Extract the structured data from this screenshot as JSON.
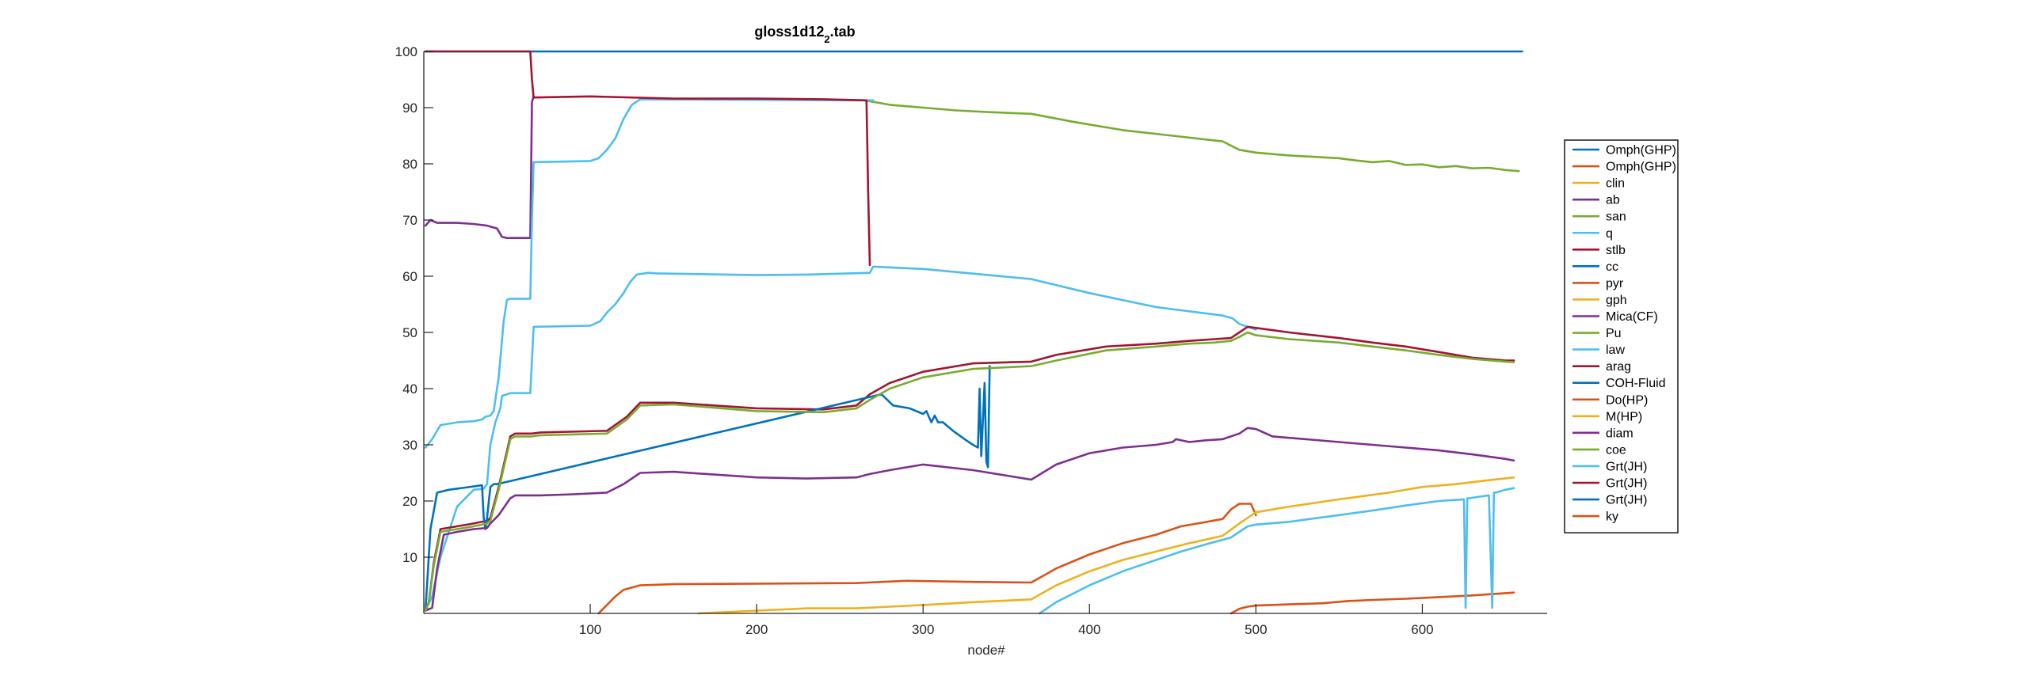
{
  "chart_data": {
    "type": "line",
    "title": "gloss1d12",
    "title_subscript": "2",
    "title_suffix": ".tab",
    "xlabel": "node#",
    "ylabel": "",
    "xlim": [
      0,
      675
    ],
    "ylim": [
      0,
      100
    ],
    "xticks": [
      100,
      200,
      300,
      400,
      500,
      600
    ],
    "yticks": [
      10,
      20,
      30,
      40,
      50,
      60,
      70,
      80,
      90,
      100
    ],
    "grid": false,
    "legend_position": "outside-right",
    "series": [
      {
        "name": "Omph(GHP)",
        "color": "#0072bd",
        "x": [
          1,
          660
        ],
        "y": [
          100,
          100
        ]
      },
      {
        "name": "Omph(GHP)",
        "color": "#d95319",
        "x": [
          1
        ],
        "y": [
          0
        ]
      },
      {
        "name": "clin",
        "color": "#edb120",
        "x": [
          1
        ],
        "y": [
          0
        ]
      },
      {
        "name": "ab",
        "color": "#7e2f8e",
        "x": [
          1,
          4,
          8,
          20,
          30,
          38,
          44,
          47,
          50,
          60,
          64,
          65,
          66
        ],
        "y": [
          69,
          70,
          69.5,
          69.5,
          69.3,
          69,
          68.5,
          67,
          66.8,
          66.8,
          66.8,
          91,
          92
        ]
      },
      {
        "name": "san",
        "color": "#77ac30",
        "x": [
          265,
          280,
          300,
          320,
          340,
          365,
          390,
          420,
          450,
          480,
          490,
          500,
          520,
          550,
          560,
          570,
          580,
          590,
          600,
          610,
          620,
          630,
          640,
          650,
          658
        ],
        "y": [
          91.3,
          90.5,
          90,
          89.5,
          89.2,
          88.9,
          87.5,
          86,
          85,
          84,
          82.5,
          82,
          81.5,
          81,
          80.6,
          80.3,
          80.5,
          79.8,
          79.9,
          79.4,
          79.6,
          79.2,
          79.3,
          78.9,
          78.7
        ]
      },
      {
        "name": "q",
        "color": "#4dbeee",
        "x": [
          1,
          5,
          10,
          20,
          30,
          35,
          37,
          40,
          42,
          45,
          48,
          50,
          52,
          54,
          60,
          64,
          65,
          66,
          100,
          105,
          110,
          115,
          120,
          125,
          130,
          270
        ],
        "y": [
          29.5,
          31,
          33.5,
          34,
          34.2,
          34.5,
          35,
          35.2,
          36,
          42,
          52,
          55.8,
          56,
          56,
          56,
          56,
          70,
          80.3,
          80.5,
          81,
          82.5,
          84.5,
          88,
          90.5,
          91.5,
          91.3
        ]
      },
      {
        "name": "stlb",
        "color": "#a2142f",
        "x": [
          1,
          64,
          65,
          66,
          100,
          150,
          200,
          240,
          266,
          267,
          268
        ],
        "y": [
          100,
          100,
          95,
          91.8,
          92,
          91.6,
          91.6,
          91.5,
          91.3,
          75,
          62
        ]
      },
      {
        "name": "cc",
        "color": "#0072bd",
        "x": [
          1
        ],
        "y": [
          0
        ]
      },
      {
        "name": "pyr",
        "color": "#d95319",
        "x": [
          485,
          490,
          495,
          500,
          520,
          540,
          555,
          570,
          590,
          610,
          630,
          650,
          655
        ],
        "y": [
          0,
          0.8,
          1.2,
          1.4,
          1.6,
          1.8,
          2.2,
          2.4,
          2.6,
          2.9,
          3.2,
          3.6,
          3.7
        ]
      },
      {
        "name": "gph",
        "color": "#edb120",
        "x": [
          1
        ],
        "y": [
          0
        ]
      },
      {
        "name": "Mica(CF)",
        "color": "#7e2f8e",
        "x": [
          1
        ],
        "y": [
          0
        ]
      },
      {
        "name": "Pu",
        "color": "#77ac30",
        "x": [
          1
        ],
        "y": [
          0
        ]
      },
      {
        "name": "law",
        "color": "#4dbeee",
        "x": [
          1,
          5,
          10,
          20,
          30,
          36,
          38,
          40,
          43,
          46,
          47,
          50,
          52,
          62,
          64,
          65,
          66,
          100,
          106,
          110,
          115,
          120,
          124,
          128,
          135,
          140,
          200,
          230,
          268,
          270,
          300,
          365,
          400,
          440,
          480,
          486,
          490,
          500
        ],
        "y": [
          0.5,
          3,
          10,
          19,
          22,
          22.2,
          23,
          30,
          34,
          36.5,
          38.7,
          39,
          39.2,
          39.2,
          39.2,
          45,
          51,
          51.2,
          52,
          53.5,
          55,
          57,
          59,
          60.3,
          60.6,
          60.5,
          60.2,
          60.3,
          60.6,
          61.7,
          61.3,
          59.5,
          57,
          54.5,
          53,
          52.5,
          51.5,
          50.5
        ]
      },
      {
        "name": "arag",
        "color": "#a2142f",
        "x": [
          1,
          3,
          6,
          10,
          20,
          30,
          38,
          40,
          45,
          52,
          55,
          65,
          70,
          110,
          122,
          130,
          150,
          200,
          240,
          260,
          268,
          280,
          300,
          330,
          365,
          380,
          410,
          440,
          460,
          475,
          485,
          490,
          495,
          500,
          520,
          550,
          570,
          590,
          610,
          630,
          650,
          655
        ],
        "y": [
          0.5,
          2,
          9,
          15,
          15.5,
          16,
          16.5,
          17,
          22.5,
          31.5,
          32,
          32,
          32.2,
          32.5,
          35,
          37.5,
          37.5,
          36.5,
          36.3,
          37,
          39,
          41,
          43,
          44.5,
          44.8,
          46,
          47.5,
          48,
          48.5,
          48.8,
          49,
          50,
          51,
          50.8,
          50,
          49,
          48.2,
          47.5,
          46.5,
          45.5,
          45,
          45
        ]
      },
      {
        "name": "COH-Fluid",
        "color": "#0072bd",
        "x": [
          1,
          4,
          8,
          15,
          25,
          35,
          36,
          37,
          38,
          40,
          42,
          44,
          275,
          282,
          292,
          300,
          302,
          305,
          307,
          309,
          312,
          318,
          325,
          330,
          333,
          334,
          335,
          337,
          338,
          339,
          340
        ],
        "y": [
          0.5,
          15,
          21.5,
          22,
          22.4,
          22.8,
          17,
          15,
          17,
          22.5,
          23,
          23,
          39,
          37,
          36.5,
          35.5,
          36,
          34,
          35.2,
          34,
          34,
          32.5,
          31,
          30,
          29.5,
          40,
          28,
          41,
          27,
          26,
          44
        ]
      },
      {
        "name": "Do(HP)",
        "color": "#d95319",
        "x": [
          105,
          110,
          115,
          120,
          130,
          150,
          200,
          260,
          290,
          330,
          365,
          380,
          400,
          420,
          440,
          455,
          465,
          480,
          485,
          490,
          497,
          500
        ],
        "y": [
          0,
          1.5,
          3,
          4.2,
          5,
          5.2,
          5.3,
          5.4,
          5.8,
          5.6,
          5.5,
          8,
          10.5,
          12.5,
          14,
          15.5,
          16,
          16.8,
          18.5,
          19.5,
          19.5,
          17.5
        ]
      },
      {
        "name": "M(HP)",
        "color": "#edb120",
        "x": [
          165,
          200,
          230,
          260,
          280,
          300,
          330,
          365,
          380,
          400,
          420,
          440,
          460,
          480,
          490,
          500,
          520,
          550,
          580,
          600,
          620,
          640,
          655
        ],
        "y": [
          0,
          0.5,
          0.9,
          0.9,
          1.2,
          1.5,
          2,
          2.5,
          5,
          7.5,
          9.5,
          11,
          12.5,
          13.8,
          16,
          18,
          19,
          20.3,
          21.5,
          22.5,
          23,
          23.7,
          24.2
        ]
      },
      {
        "name": "diam",
        "color": "#7e2f8e",
        "x": [
          1,
          5,
          8,
          12,
          20,
          30,
          38,
          40,
          45,
          52,
          55,
          60,
          70,
          90,
          110,
          120,
          130,
          150,
          200,
          230,
          260,
          268,
          280,
          300,
          330,
          365,
          380,
          400,
          420,
          440,
          450,
          452,
          460,
          470,
          480,
          490,
          495,
          500,
          510,
          530,
          550,
          570,
          590,
          610,
          630,
          650,
          655
        ],
        "y": [
          0.5,
          1,
          8,
          14,
          14.5,
          15,
          15.2,
          16,
          17.5,
          20.5,
          21,
          21,
          21,
          21.2,
          21.5,
          23,
          25,
          25.2,
          24.2,
          24,
          24.2,
          24.8,
          25.5,
          26.5,
          25.5,
          23.8,
          26.5,
          28.5,
          29.5,
          30,
          30.5,
          31,
          30.5,
          30.8,
          31,
          32,
          33,
          32.8,
          31.5,
          31,
          30.5,
          30,
          29.5,
          29,
          28.3,
          27.5,
          27.2
        ]
      },
      {
        "name": "coe",
        "color": "#77ac30",
        "x": [
          1,
          3,
          6,
          10,
          20,
          30,
          38,
          40,
          45,
          52,
          55,
          65,
          70,
          110,
          122,
          130,
          150,
          200,
          240,
          260,
          268,
          280,
          300,
          330,
          365,
          380,
          410,
          440,
          460,
          475,
          485,
          490,
          495,
          500,
          520,
          550,
          570,
          590,
          610,
          630,
          650,
          655
        ],
        "y": [
          0.5,
          2,
          8.5,
          14.5,
          15,
          15.5,
          16,
          16.5,
          22,
          31,
          31.5,
          31.5,
          31.7,
          32,
          34.5,
          37,
          37.2,
          36,
          35.8,
          36.5,
          38,
          40,
          42,
          43.5,
          44,
          45,
          46.8,
          47.5,
          48,
          48.2,
          48.5,
          49.2,
          50,
          49.5,
          48.8,
          48.2,
          47.5,
          46.8,
          46,
          45.3,
          44.8,
          44.7
        ]
      },
      {
        "name": "Grt(JH)",
        "color": "#4dbeee",
        "x": [
          370,
          380,
          400,
          420,
          440,
          455,
          470,
          485,
          490,
          495,
          500,
          520,
          550,
          570,
          590,
          610,
          625,
          626,
          627,
          628,
          640,
          642,
          643,
          644,
          650,
          655
        ],
        "y": [
          0,
          2,
          5,
          7.5,
          9.5,
          11,
          12.3,
          13.5,
          14.5,
          15.5,
          15.8,
          16.3,
          17.5,
          18.3,
          19.2,
          20,
          20.3,
          1,
          20.5,
          20.5,
          21,
          1,
          21.5,
          21.5,
          22,
          22.3
        ]
      },
      {
        "name": "Grt(JH)",
        "color": "#a2142f",
        "x": [
          1
        ],
        "y": [
          0
        ]
      },
      {
        "name": "Grt(JH)",
        "color": "#0072bd",
        "x": [
          1
        ],
        "y": [
          0
        ]
      },
      {
        "name": "ky",
        "color": "#d95319",
        "x": [
          1
        ],
        "y": [
          0
        ]
      }
    ]
  }
}
